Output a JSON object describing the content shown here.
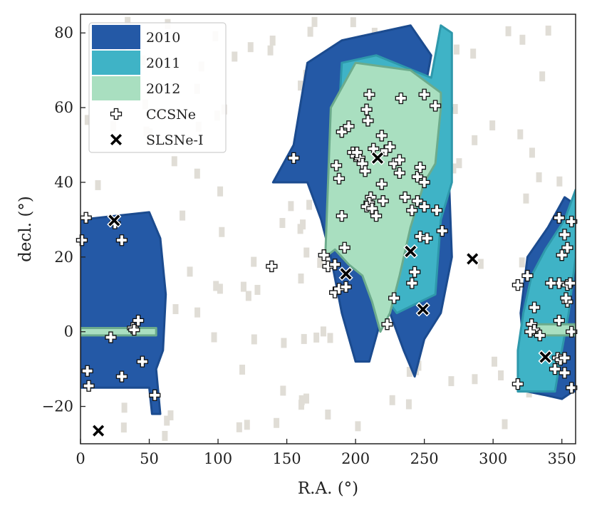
{
  "chart_data": {
    "type": "scatter",
    "xlabel": "R.A. (°)",
    "ylabel": "decl. (°)",
    "xlim": [
      0,
      360
    ],
    "ylim": [
      -30,
      85
    ],
    "x_ticks": [
      0,
      50,
      100,
      150,
      200,
      250,
      300,
      350
    ],
    "y_ticks": [
      -20,
      0,
      20,
      40,
      60,
      80
    ],
    "x_tick_labels": [
      "0",
      "50",
      "100",
      "150",
      "200",
      "250",
      "300",
      "350"
    ],
    "y_tick_labels": [
      "−20",
      "0",
      "20",
      "40",
      "60",
      "80"
    ],
    "grid": false,
    "legend_position": "top-left",
    "colors": {
      "2010": "#2459a6",
      "2011": "#3fb3c6",
      "2012": "#a9dfc0",
      "background_fields": "#e0ddd6",
      "ccsne_marker": "#ffffff",
      "slsne_marker": "#000000"
    },
    "coverage_regions": [
      {
        "name": "2010",
        "polygons": [
          [
            [
              0,
              -15
            ],
            [
              50,
              -15
            ],
            [
              52,
              -22
            ],
            [
              58,
              -22
            ],
            [
              55,
              -10
            ],
            [
              60,
              -5
            ],
            [
              62,
              10
            ],
            [
              58,
              25
            ],
            [
              50,
              32
            ],
            [
              0,
              30
            ]
          ],
          [
            [
              140,
              40
            ],
            [
              155,
              50
            ],
            [
              165,
              72
            ],
            [
              190,
              78
            ],
            [
              240,
              82
            ],
            [
              255,
              74
            ],
            [
              250,
              64
            ],
            [
              270,
              60
            ],
            [
              268,
              40
            ],
            [
              270,
              20
            ],
            [
              262,
              5
            ],
            [
              250,
              -2
            ],
            [
              243,
              -12
            ],
            [
              235,
              -5
            ],
            [
              222,
              8
            ],
            [
              210,
              -8
            ],
            [
              200,
              -8
            ],
            [
              190,
              5
            ],
            [
              182,
              20
            ],
            [
              175,
              30
            ],
            [
              165,
              40
            ]
          ],
          [
            [
              325,
              -16
            ],
            [
              338,
              -17
            ],
            [
              350,
              -18
            ],
            [
              358,
              -16
            ],
            [
              360,
              -16
            ],
            [
              360,
              34
            ],
            [
              352,
              36
            ],
            [
              340,
              28
            ],
            [
              325,
              20
            ],
            [
              320,
              5
            ]
          ]
        ]
      },
      {
        "name": "2011",
        "polygons": [
          [
            [
              185,
              40
            ],
            [
              190,
              72
            ],
            [
              215,
              74
            ],
            [
              255,
              68
            ],
            [
              262,
              82
            ],
            [
              270,
              80
            ],
            [
              270,
              40
            ],
            [
              262,
              30
            ],
            [
              258,
              10
            ],
            [
              230,
              5
            ],
            [
              200,
              20
            ],
            [
              190,
              30
            ]
          ],
          [
            [
              318,
              -16
            ],
            [
              318,
              -5
            ],
            [
              322,
              5
            ],
            [
              328,
              15
            ],
            [
              338,
              22
            ],
            [
              352,
              30
            ],
            [
              360,
              38
            ],
            [
              360,
              20
            ],
            [
              355,
              5
            ],
            [
              350,
              -5
            ],
            [
              345,
              -16
            ]
          ]
        ]
      },
      {
        "name": "2012",
        "polygons": [
          [
            [
              178,
              20
            ],
            [
              182,
              60
            ],
            [
              200,
              72
            ],
            [
              240,
              70
            ],
            [
              262,
              64
            ],
            [
              262,
              60
            ],
            [
              258,
              45
            ],
            [
              250,
              40
            ],
            [
              240,
              28
            ],
            [
              232,
              15
            ],
            [
              225,
              5
            ],
            [
              218,
              0
            ],
            [
              212,
              8
            ],
            [
              205,
              15
            ],
            [
              195,
              18
            ],
            [
              185,
              22
            ]
          ],
          [
            [
              0,
              -1
            ],
            [
              55,
              -1
            ],
            [
              55,
              1
            ],
            [
              0,
              1
            ]
          ],
          [
            [
              330,
              -1
            ],
            [
              360,
              -1
            ],
            [
              360,
              2
            ],
            [
              330,
              2
            ]
          ]
        ]
      }
    ],
    "series": [
      {
        "name": "CCSNe",
        "marker": "plus",
        "points": [
          [
            4,
            30.5
          ],
          [
            1,
            24.5
          ],
          [
            30,
            24.5
          ],
          [
            25,
            29
          ],
          [
            42,
            3
          ],
          [
            38,
            1
          ],
          [
            39,
            0.5
          ],
          [
            22,
            -1.5
          ],
          [
            45,
            -8
          ],
          [
            5,
            -10.5
          ],
          [
            30,
            -12
          ],
          [
            6,
            -14.5
          ],
          [
            54,
            -17
          ],
          [
            139,
            17.5
          ],
          [
            155,
            46.5
          ],
          [
            177,
            20.5
          ],
          [
            180,
            17.5
          ],
          [
            185,
            18
          ],
          [
            185,
            10.5
          ],
          [
            188,
            11.5
          ],
          [
            193,
            12
          ],
          [
            192,
            22.5
          ],
          [
            190,
            31
          ],
          [
            186,
            44.5
          ],
          [
            188,
            41
          ],
          [
            190,
            53.5
          ],
          [
            195,
            55
          ],
          [
            198,
            48
          ],
          [
            200,
            47
          ],
          [
            203,
            46.5
          ],
          [
            205,
            45
          ],
          [
            207,
            43
          ],
          [
            201,
            48
          ],
          [
            210,
            63.5
          ],
          [
            208,
            59.5
          ],
          [
            209,
            56.5
          ],
          [
            213,
            49
          ],
          [
            219,
            52.5
          ],
          [
            222,
            48.5
          ],
          [
            225,
            49.5
          ],
          [
            228,
            45
          ],
          [
            220,
            35
          ],
          [
            211,
            36
          ],
          [
            210,
            34.5
          ],
          [
            208,
            33.5
          ],
          [
            212,
            33
          ],
          [
            215,
            31
          ],
          [
            219,
            39.5
          ],
          [
            232,
            46
          ],
          [
            232,
            42.5
          ],
          [
            236,
            36
          ],
          [
            241,
            32.5
          ],
          [
            245,
            35
          ],
          [
            250,
            33.5
          ],
          [
            259,
            32.5
          ],
          [
            245,
            41.5
          ],
          [
            247,
            44
          ],
          [
            250,
            40
          ],
          [
            247,
            25.5
          ],
          [
            252,
            25
          ],
          [
            263,
            27
          ],
          [
            243,
            16
          ],
          [
            241,
            13
          ],
          [
            228,
            9
          ],
          [
            223,
            2
          ],
          [
            233,
            62.5
          ],
          [
            250,
            63.5
          ],
          [
            258,
            60.5
          ],
          [
            318,
            -14
          ],
          [
            330,
            6.5
          ],
          [
            328,
            2
          ],
          [
            330,
            0.5
          ],
          [
            327,
            0
          ],
          [
            334,
            -1
          ],
          [
            325,
            15
          ],
          [
            318,
            12.5
          ],
          [
            348,
            30.5
          ],
          [
            357,
            29.5
          ],
          [
            354,
            22.5
          ],
          [
            350,
            20.5
          ],
          [
            352,
            26
          ],
          [
            348,
            13
          ],
          [
            342,
            13
          ],
          [
            354,
            12.5
          ],
          [
            356,
            13
          ],
          [
            354,
            8
          ],
          [
            353,
            9
          ],
          [
            348,
            3
          ],
          [
            357,
            0
          ],
          [
            347,
            -7
          ],
          [
            349,
            -7.5
          ],
          [
            352,
            -7
          ],
          [
            345,
            -10
          ],
          [
            352,
            -11
          ],
          [
            357,
            -15
          ]
        ]
      },
      {
        "name": "SLSNe-I",
        "marker": "x",
        "points": [
          [
            24.5,
            29.8
          ],
          [
            13,
            -26.5
          ],
          [
            193,
            15.5
          ],
          [
            216,
            46.5
          ],
          [
            240,
            21.5
          ],
          [
            249,
            6
          ],
          [
            285,
            19.5
          ],
          [
            338,
            -6.8
          ]
        ]
      }
    ],
    "legend": [
      {
        "label": "2010",
        "kind": "patch",
        "color": "#2459a6"
      },
      {
        "label": "2011",
        "kind": "patch",
        "color": "#3fb3c6"
      },
      {
        "label": "2012",
        "kind": "patch",
        "color": "#a9dfc0"
      },
      {
        "label": "CCSNe",
        "kind": "plus"
      },
      {
        "label": "SLSNe-I",
        "kind": "x"
      }
    ]
  }
}
